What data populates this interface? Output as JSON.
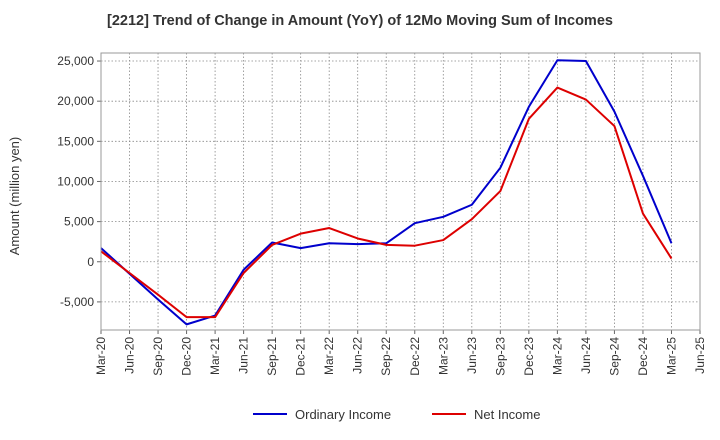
{
  "chart_data": {
    "type": "line",
    "title": "[2212]  Trend of Change in Amount (YoY) of 12Mo Moving Sum of Incomes",
    "xlabel": "",
    "ylabel": "Amount (million yen)",
    "categories": [
      "Mar-20",
      "Jun-20",
      "Sep-20",
      "Dec-20",
      "Mar-21",
      "Jun-21",
      "Sep-21",
      "Dec-21",
      "Mar-22",
      "Jun-22",
      "Sep-22",
      "Dec-22",
      "Mar-23",
      "Jun-23",
      "Sep-23",
      "Dec-23",
      "Mar-24",
      "Jun-24",
      "Sep-24",
      "Dec-24",
      "Mar-25",
      "Jun-25"
    ],
    "ylim": [
      -8500,
      26000
    ],
    "yticks": [
      25000,
      20000,
      15000,
      10000,
      5000,
      0,
      -5000
    ],
    "ytick_labels": [
      "25,000",
      "20,000",
      "15,000",
      "10,000",
      "5,000",
      "0",
      "-5,000"
    ],
    "grid": true,
    "legend_position": "bottom-center",
    "series": [
      {
        "name": "Ordinary Income",
        "color": "#0000cc",
        "values": [
          1700,
          -1500,
          -4700,
          -7800,
          -6700,
          -1000,
          2400,
          1700,
          2300,
          2200,
          2300,
          4800,
          5600,
          7100,
          11700,
          19300,
          25100,
          25000,
          18700,
          10700,
          2300,
          null
        ]
      },
      {
        "name": "Net Income",
        "color": "#dd0000",
        "values": [
          1300,
          -1400,
          -4100,
          -6900,
          -6900,
          -1400,
          2100,
          3500,
          4200,
          2900,
          2100,
          2000,
          2700,
          5300,
          8800,
          17800,
          21700,
          20200,
          16900,
          6000,
          400,
          null
        ]
      }
    ]
  }
}
